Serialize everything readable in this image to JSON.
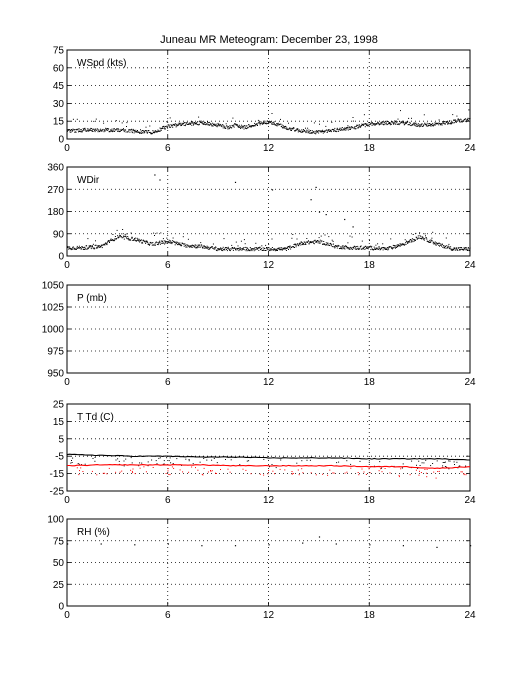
{
  "figure": {
    "title": "Juneau MR Meteogram:   December 23, 1998",
    "colors": {
      "primary": "#000000",
      "dewpoint": "#ff0000",
      "background": "#ffffff"
    }
  },
  "chart_data": [
    {
      "type": "scatter",
      "panel_label": "WSpd (kts)",
      "xlim": [
        0,
        24
      ],
      "x_ticks": [
        "0",
        "6",
        "12",
        "18",
        "24"
      ],
      "ylim": [
        0,
        75
      ],
      "y_ticks": [
        "0",
        "15",
        "30",
        "45",
        "60",
        "75"
      ],
      "grid": true,
      "series": [
        {
          "color": "#000000",
          "x": [
            0,
            1,
            2,
            3,
            4,
            5,
            6,
            7,
            8,
            9,
            9.5,
            10,
            10.5,
            11,
            12,
            13,
            14,
            15,
            16,
            17,
            18,
            19,
            20,
            21,
            22,
            23,
            24
          ],
          "y": [
            7,
            8,
            8,
            8,
            7,
            6,
            11,
            13,
            14,
            12,
            10,
            12,
            10,
            12,
            15,
            10,
            7,
            6,
            8,
            10,
            13,
            14,
            14,
            12,
            13,
            15,
            17
          ]
        }
      ]
    },
    {
      "type": "scatter",
      "panel_label": "WDir",
      "xlim": [
        0,
        24
      ],
      "x_ticks": [
        "0",
        "6",
        "12",
        "18",
        "24"
      ],
      "ylim": [
        0,
        360
      ],
      "y_ticks": [
        "0",
        "90",
        "180",
        "270",
        "360"
      ],
      "grid": true,
      "series": [
        {
          "color": "#000000",
          "x": [
            0,
            1,
            2,
            3,
            4,
            5,
            6,
            7,
            8,
            9,
            10,
            11,
            12,
            13,
            14,
            15,
            16,
            17,
            18,
            19,
            20,
            21,
            22,
            23,
            24
          ],
          "y": [
            35,
            35,
            40,
            80,
            70,
            50,
            60,
            45,
            40,
            30,
            30,
            30,
            30,
            30,
            55,
            60,
            40,
            35,
            35,
            30,
            50,
            80,
            50,
            30,
            30
          ]
        },
        {
          "color": "#000000",
          "x": [
            5.2,
            5.5,
            10,
            12.2,
            14.5,
            14.8,
            15,
            15.4,
            16.5,
            17
          ],
          "y": [
            330,
            310,
            300,
            270,
            230,
            280,
            180,
            170,
            150,
            120
          ]
        }
      ]
    },
    {
      "type": "scatter",
      "panel_label": "P (mb)",
      "xlim": [
        0,
        24
      ],
      "x_ticks": [
        "0",
        "6",
        "12",
        "18",
        "24"
      ],
      "ylim": [
        950,
        1050
      ],
      "y_ticks": [
        "950",
        "975",
        "1000",
        "1025",
        "1050"
      ],
      "grid": true,
      "series": []
    },
    {
      "type": "line",
      "panel_label": "T Td (C)",
      "xlim": [
        0,
        24
      ],
      "x_ticks": [
        "0",
        "6",
        "12",
        "18",
        "24"
      ],
      "ylim": [
        -25,
        25
      ],
      "y_ticks": [
        "-25",
        "-15",
        "-5",
        "5",
        "15",
        "25"
      ],
      "grid": true,
      "series": [
        {
          "color": "#000000",
          "x": [
            0,
            2,
            4,
            6,
            8,
            10,
            12,
            14,
            16,
            18,
            20,
            22,
            24
          ],
          "y": [
            -4,
            -4.5,
            -5,
            -5,
            -5.5,
            -5.5,
            -6,
            -6,
            -6,
            -6.5,
            -6.5,
            -6.5,
            -7
          ]
        },
        {
          "color": "#ff0000",
          "x": [
            0,
            2,
            4,
            6,
            8,
            10,
            12,
            14,
            16,
            18,
            20,
            22,
            24
          ],
          "y": [
            -10.5,
            -10,
            -10,
            -10,
            -10,
            -10.5,
            -10.5,
            -10.5,
            -10.5,
            -11,
            -11,
            -12,
            -11
          ]
        }
      ]
    },
    {
      "type": "scatter",
      "panel_label": "RH (%)",
      "xlim": [
        0,
        24
      ],
      "x_ticks": [
        "0",
        "6",
        "12",
        "18",
        "24"
      ],
      "ylim": [
        0,
        100
      ],
      "y_ticks": [
        "0",
        "25",
        "50",
        "75",
        "100"
      ],
      "grid": true,
      "series": [
        {
          "color": "#000000",
          "x": [
            0,
            2,
            4,
            6,
            8,
            10,
            12,
            14,
            15,
            16,
            18,
            20,
            22,
            24
          ],
          "y": [
            72,
            72,
            71,
            72,
            70,
            70,
            71,
            73,
            80,
            72,
            71,
            70,
            68,
            70
          ]
        }
      ]
    }
  ]
}
